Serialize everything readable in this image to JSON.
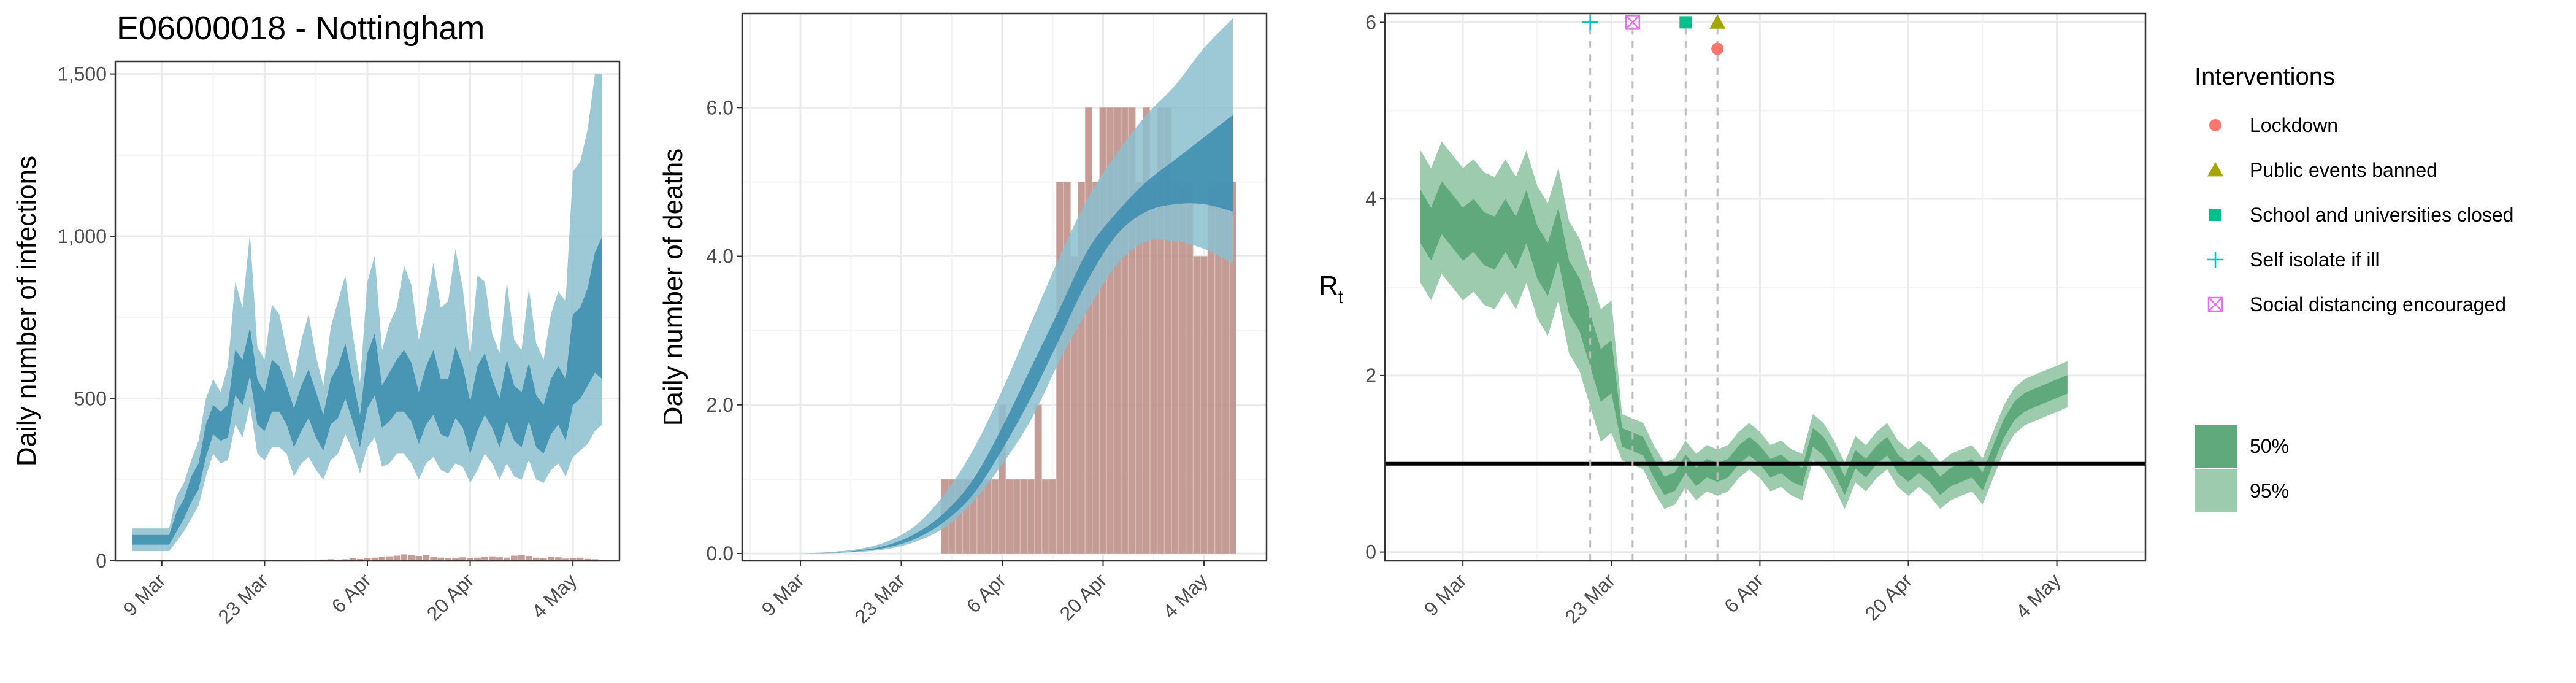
{
  "title": "E06000018 - Nottingham",
  "chart_data": [
    {
      "type": "bar",
      "panel": "infections",
      "ylabel": "Daily number of infections",
      "xlabel": "",
      "x_ticks": [
        "9 Mar",
        "23 Mar",
        "6 Apr",
        "20 Apr",
        "4 May"
      ],
      "y_ticks": [
        "0",
        "500",
        "1,000",
        "1,500"
      ],
      "ylim": [
        0,
        1520
      ],
      "grid": true,
      "days": [
        -4,
        -3,
        -2,
        -1,
        0,
        1,
        2,
        3,
        4,
        5,
        6,
        7,
        8,
        9,
        10,
        11,
        12,
        13,
        14,
        15,
        16,
        17,
        18,
        19,
        20,
        21,
        22,
        23,
        24,
        25,
        26,
        27,
        28,
        29,
        30,
        31,
        32,
        33,
        34,
        35,
        36,
        37,
        38,
        39,
        40,
        41,
        42,
        43,
        44,
        45,
        46,
        47,
        48,
        49,
        50,
        51,
        52,
        53,
        54,
        55,
        56,
        57,
        58,
        59,
        60
      ],
      "observed_cases": [
        0,
        0,
        0,
        0,
        0,
        0,
        0,
        0,
        0,
        0,
        0,
        0,
        0,
        0,
        0,
        0,
        0,
        0,
        0,
        0,
        0,
        0,
        0,
        2,
        3,
        3,
        4,
        5,
        4,
        5,
        8,
        6,
        9,
        10,
        12,
        14,
        16,
        20,
        18,
        15,
        19,
        12,
        10,
        8,
        9,
        11,
        8,
        10,
        12,
        14,
        11,
        10,
        16,
        18,
        15,
        10,
        9,
        12,
        11,
        7,
        8,
        10,
        6,
        5,
        3
      ],
      "series": [
        {
          "name": "95%",
          "upper": [
            100,
            100,
            100,
            100,
            100,
            100,
            200,
            240,
            310,
            370,
            500,
            560,
            520,
            600,
            860,
            780,
            1010,
            660,
            620,
            790,
            760,
            650,
            560,
            680,
            760,
            630,
            540,
            720,
            800,
            880,
            700,
            550,
            860,
            940,
            650,
            730,
            780,
            910,
            850,
            680,
            780,
            920,
            780,
            800,
            960,
            840,
            630,
            880,
            860,
            700,
            640,
            860,
            680,
            650,
            840,
            670,
            620,
            760,
            830,
            800,
            1200,
            1230,
            1330,
            1500,
            1500
          ],
          "lower": [
            30,
            30,
            30,
            30,
            30,
            30,
            60,
            90,
            130,
            170,
            260,
            330,
            300,
            310,
            420,
            380,
            480,
            330,
            310,
            350,
            350,
            330,
            260,
            300,
            320,
            280,
            250,
            310,
            330,
            390,
            340,
            270,
            350,
            380,
            290,
            300,
            330,
            330,
            300,
            250,
            300,
            320,
            280,
            270,
            300,
            290,
            240,
            280,
            330,
            300,
            250,
            300,
            260,
            250,
            310,
            250,
            240,
            280,
            300,
            260,
            320,
            340,
            360,
            400,
            420
          ]
        },
        {
          "name": "50%",
          "upper": [
            80,
            80,
            80,
            80,
            80,
            80,
            150,
            190,
            260,
            300,
            420,
            480,
            460,
            480,
            650,
            620,
            720,
            560,
            520,
            620,
            600,
            540,
            470,
            540,
            590,
            520,
            450,
            560,
            600,
            670,
            560,
            450,
            640,
            700,
            540,
            580,
            620,
            650,
            610,
            520,
            600,
            650,
            560,
            560,
            660,
            600,
            490,
            600,
            640,
            560,
            500,
            620,
            540,
            520,
            610,
            510,
            480,
            560,
            600,
            560,
            760,
            780,
            840,
            950,
            1000
          ],
          "lower": [
            50,
            50,
            50,
            50,
            50,
            50,
            90,
            130,
            180,
            220,
            320,
            390,
            370,
            380,
            510,
            480,
            570,
            420,
            400,
            460,
            460,
            420,
            350,
            400,
            440,
            380,
            340,
            420,
            440,
            500,
            430,
            350,
            470,
            510,
            410,
            430,
            460,
            460,
            430,
            360,
            420,
            450,
            390,
            380,
            440,
            410,
            330,
            400,
            450,
            410,
            350,
            430,
            370,
            350,
            430,
            350,
            330,
            390,
            420,
            370,
            480,
            500,
            540,
            580,
            560
          ]
        }
      ]
    },
    {
      "type": "bar",
      "panel": "deaths",
      "ylabel": "Daily number of deaths",
      "xlabel": "",
      "x_ticks": [
        "9 Mar",
        "23 Mar",
        "6 Apr",
        "20 Apr",
        "4 May"
      ],
      "y_ticks": [
        "0.0",
        "2.0",
        "4.0",
        "6.0"
      ],
      "ylim": [
        0,
        7.2
      ],
      "grid": true,
      "days": [
        0,
        1,
        2,
        3,
        4,
        5,
        6,
        7,
        8,
        9,
        10,
        11,
        12,
        13,
        14,
        15,
        16,
        17,
        18,
        19,
        20,
        21,
        22,
        23,
        24,
        25,
        26,
        27,
        28,
        29,
        30,
        31,
        32,
        33,
        34,
        35,
        36,
        37,
        38,
        39,
        40,
        41,
        42,
        43,
        44,
        45,
        46,
        47,
        48,
        49,
        50,
        51,
        52,
        53,
        54,
        55,
        56,
        57,
        58,
        59,
        60
      ],
      "observed_deaths": [
        0,
        0,
        0,
        0,
        0,
        0,
        0,
        0,
        0,
        0,
        0,
        0,
        0,
        0,
        0,
        0,
        0,
        0,
        0,
        0,
        1,
        1,
        1,
        1,
        1,
        1,
        1,
        1,
        2,
        1,
        1,
        1,
        1,
        2,
        1,
        1,
        5,
        5,
        4,
        5,
        6,
        5,
        6,
        6,
        6,
        6,
        6,
        5,
        6,
        5,
        6,
        6,
        5,
        5,
        5,
        4,
        4,
        5,
        5,
        5,
        5
      ],
      "band_days": [
        0,
        4,
        8,
        12,
        16,
        20,
        24,
        28,
        32,
        36,
        40,
        44,
        48,
        52,
        56,
        60
      ],
      "series": [
        {
          "name": "95%",
          "upper": [
            0,
            0.02,
            0.06,
            0.16,
            0.38,
            0.8,
            1.4,
            2.2,
            3.1,
            4.0,
            4.8,
            5.4,
            5.9,
            6.3,
            6.8,
            7.2
          ],
          "lower": [
            0,
            0.005,
            0.02,
            0.06,
            0.16,
            0.35,
            0.7,
            1.2,
            1.8,
            2.6,
            3.3,
            3.9,
            4.2,
            4.2,
            4.1,
            3.9
          ]
        },
        {
          "name": "50%",
          "upper": [
            0,
            0.01,
            0.04,
            0.11,
            0.27,
            0.55,
            1.0,
            1.7,
            2.5,
            3.3,
            4.1,
            4.6,
            5.0,
            5.3,
            5.6,
            5.9
          ],
          "lower": [
            0,
            0.008,
            0.03,
            0.08,
            0.2,
            0.43,
            0.8,
            1.4,
            2.1,
            2.9,
            3.7,
            4.3,
            4.6,
            4.7,
            4.7,
            4.6
          ]
        }
      ]
    },
    {
      "type": "area",
      "panel": "rt",
      "ylabel": "R",
      "ylabel_sub": "t",
      "xlabel": "",
      "x_ticks": [
        "9 Mar",
        "23 Mar",
        "6 Apr",
        "20 Apr",
        "4 May"
      ],
      "y_ticks": [
        "0",
        "2",
        "4",
        "6"
      ],
      "ylim": [
        -0.1,
        6.1
      ],
      "reference_line": 1,
      "grid": true,
      "days": [
        -4,
        -3,
        -2,
        -1,
        0,
        1,
        2,
        3,
        4,
        5,
        6,
        7,
        8,
        9,
        10,
        11,
        12,
        13,
        14,
        15,
        16,
        17,
        18,
        19,
        20,
        21,
        22,
        23,
        24,
        25,
        26,
        27,
        28,
        29,
        30,
        31,
        32,
        33,
        34,
        35,
        36,
        37,
        38,
        39,
        40,
        41,
        42,
        43,
        44,
        45,
        46,
        47,
        48,
        49,
        50,
        51,
        52,
        53,
        54,
        55,
        56,
        57,
        58,
        59,
        60
      ],
      "median": [
        3.8,
        3.6,
        3.9,
        3.75,
        3.6,
        3.7,
        3.55,
        3.5,
        3.7,
        3.5,
        3.8,
        3.4,
        3.2,
        3.6,
        3.0,
        2.8,
        2.4,
        2.0,
        2.1,
        1.3,
        1.25,
        1.2,
        0.95,
        0.75,
        0.8,
        1.0,
        0.85,
        0.95,
        0.9,
        0.95,
        1.1,
        1.2,
        1.1,
        0.95,
        1.0,
        0.9,
        0.85,
        1.3,
        1.2,
        1.0,
        0.75,
        1.05,
        0.95,
        1.1,
        1.2,
        1.0,
        0.9,
        1.0,
        0.9,
        0.75,
        0.85,
        0.9,
        0.95,
        0.8,
        1.1,
        1.4,
        1.6,
        1.7,
        1.75,
        1.8,
        1.85,
        1.9,
        1.95,
        2.0,
        2.0
      ],
      "series": [
        {
          "name": "95%",
          "spread": 0.75
        },
        {
          "name": "50%",
          "spread": 0.3
        }
      ],
      "interventions": [
        {
          "name": "Self isolate if ill",
          "day": 12,
          "y": 6.0,
          "symbol": "plus",
          "color": "#00bfc4"
        },
        {
          "name": "Social distancing encouraged",
          "day": 16,
          "y": 6.0,
          "symbol": "boxx",
          "color": "#e76bf3"
        },
        {
          "name": "School and universities closed",
          "day": 21,
          "y": 6.0,
          "symbol": "square",
          "color": "#00c08b"
        },
        {
          "name": "Public events banned",
          "day": 24,
          "y": 6.0,
          "symbol": "triangle",
          "color": "#a3a500"
        },
        {
          "name": "Lockdown",
          "day": 24,
          "y": 5.7,
          "symbol": "circle",
          "color": "#f8766d"
        }
      ]
    }
  ],
  "legend": {
    "interventions_title": "Interventions",
    "interventions": [
      {
        "label": "Lockdown",
        "symbol": "circle",
        "color": "#f8766d"
      },
      {
        "label": "Public events banned",
        "symbol": "triangle",
        "color": "#a3a500"
      },
      {
        "label": "School and universities closed",
        "symbol": "square",
        "color": "#00c08b"
      },
      {
        "label": "Self isolate if ill",
        "symbol": "plus",
        "color": "#00bfc4"
      },
      {
        "label": "Social distancing encouraged",
        "symbol": "boxx",
        "color": "#e76bf3"
      }
    ],
    "bands": [
      {
        "label": "50%",
        "color": "#5fa97c"
      },
      {
        "label": "95%",
        "color": "#9ccbae"
      }
    ]
  },
  "colors": {
    "blue_95": "#8cbfd0",
    "blue_50": "#3f8fb0",
    "bar": "#bb8a82",
    "green_95": "#9ccbae",
    "green_50": "#5fa97c"
  }
}
